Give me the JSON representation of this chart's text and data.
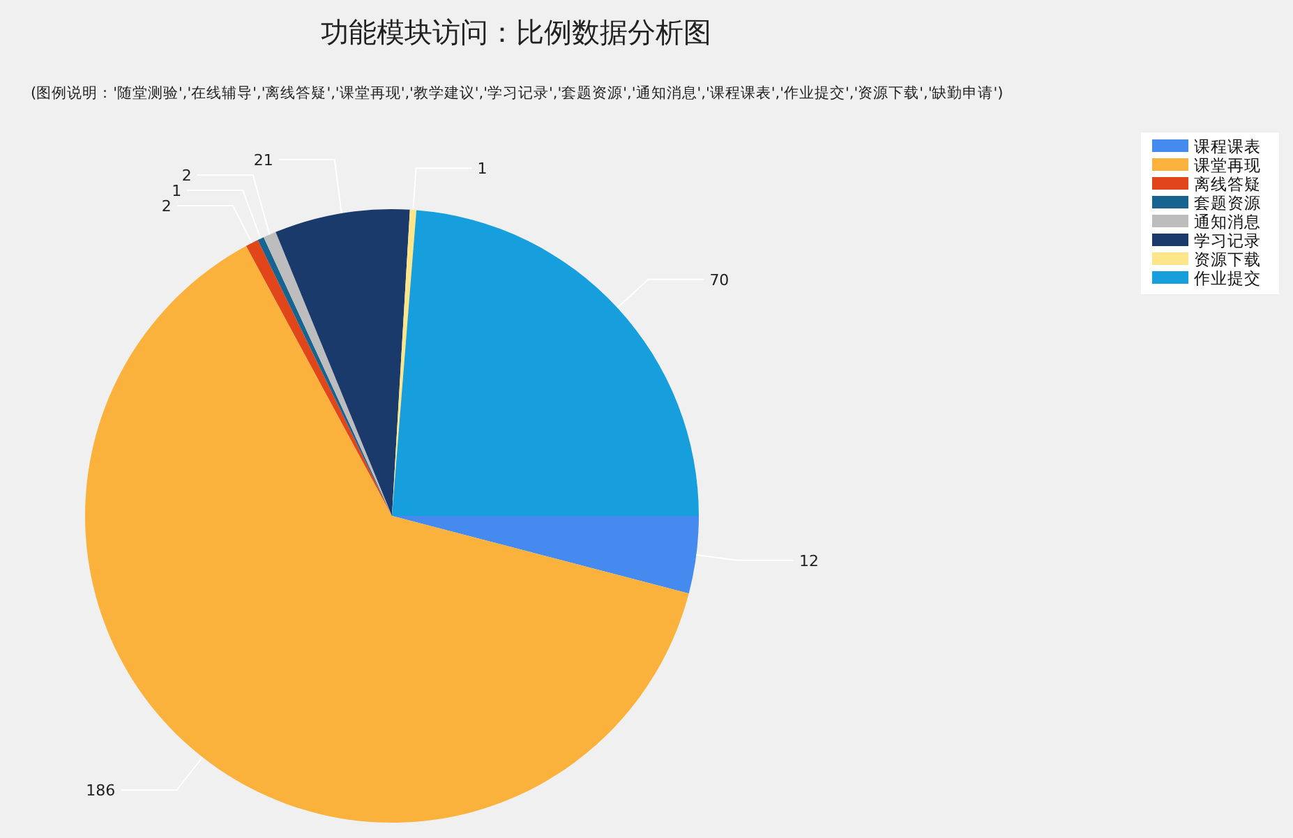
{
  "chart_data": {
    "type": "pie",
    "title": "功能模块访问：比例数据分析图",
    "annotations": [
      "(图例说明：'随堂测验','在线辅导','离线答疑','课堂再现','教学建议','学习记录','套题资源','通知消息','课程课表','作业提交','资源下载','缺勤申请')"
    ],
    "categories": [
      "课程课表",
      "课堂再现",
      "离线答疑",
      "套题资源",
      "通知消息",
      "学习记录",
      "资源下载",
      "作业提交"
    ],
    "values": [
      12,
      186,
      2,
      1,
      2,
      21,
      1,
      70
    ],
    "colors": [
      "#448aef",
      "#fbb23d",
      "#e0461a",
      "#16648f",
      "#bdbdbd",
      "#1a3a6b",
      "#fde68a",
      "#169fdc"
    ],
    "data_labels": true,
    "legend": "top right"
  }
}
